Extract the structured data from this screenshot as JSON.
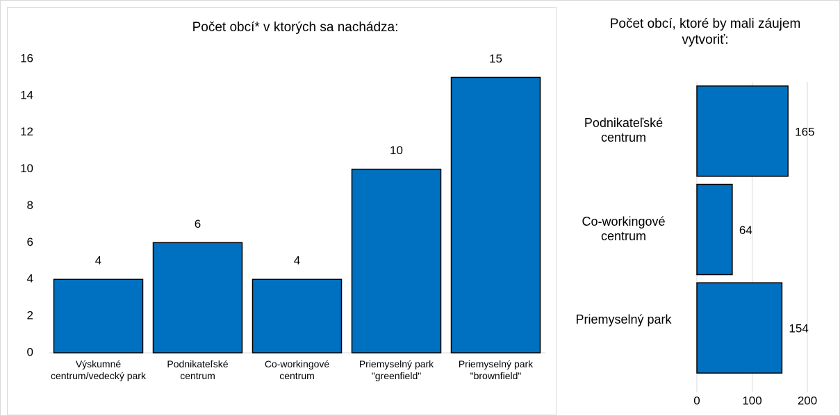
{
  "chart_data": [
    {
      "type": "bar",
      "title": "Počet obcí* v ktorých sa nachádza:",
      "categories": [
        "Výskumné centrum/vedecký park",
        "Podnikateľské centrum",
        "Co-workingové centrum",
        "Priemyselný park \"greenfield\"",
        "Priemyselný park \"brownfield\""
      ],
      "values": [
        4,
        6,
        4,
        10,
        15
      ],
      "color": "#0070c0",
      "ylim": [
        0,
        16
      ],
      "yticks": [
        0,
        2,
        4,
        6,
        8,
        10,
        12,
        14,
        16
      ]
    },
    {
      "type": "barh",
      "title": "Počet obcí, ktoré by mali záujem vytvoriť:",
      "categories": [
        "Podnikateľské centrum",
        "Co-workingové centrum",
        "Priemyselný park"
      ],
      "values": [
        165,
        64,
        154
      ],
      "color": "#0070c0",
      "xlim": [
        0,
        200
      ],
      "xticks": [
        0,
        100,
        200
      ],
      "grid": true
    }
  ]
}
